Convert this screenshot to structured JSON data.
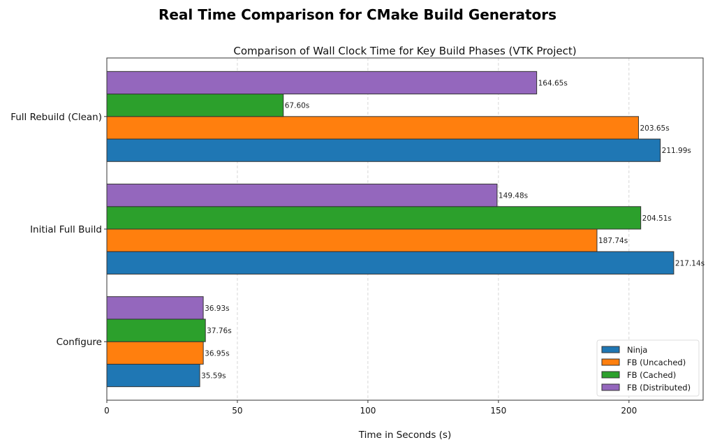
{
  "chart_data": {
    "type": "bar",
    "orientation": "horizontal",
    "suptitle": "Real Time Comparison for CMake Build Generators",
    "title": "Comparison of Wall Clock Time for Key Build Phases (VTK Project)",
    "xlabel": "Time in Seconds (s)",
    "ylabel": "",
    "categories": [
      "Configure",
      "Initial Full Build",
      "Full Rebuild (Clean)"
    ],
    "series": [
      {
        "name": "Ninja",
        "color": "#1f77b4",
        "values": [
          35.59,
          217.14,
          211.99
        ],
        "labels": [
          "35.59s",
          "217.14s",
          "211.99s"
        ]
      },
      {
        "name": "FB (Uncached)",
        "color": "#ff7f0e",
        "values": [
          36.95,
          187.74,
          203.65
        ],
        "labels": [
          "36.95s",
          "187.74s",
          "203.65s"
        ]
      },
      {
        "name": "FB (Cached)",
        "color": "#2ca02c",
        "values": [
          37.76,
          204.51,
          67.6
        ],
        "labels": [
          "37.76s",
          "204.51s",
          "67.60s"
        ]
      },
      {
        "name": "FB (Distributed)",
        "color": "#9467bd",
        "values": [
          36.93,
          149.48,
          164.65
        ],
        "labels": [
          "36.93s",
          "149.48s",
          "164.65s"
        ]
      }
    ],
    "xlim": [
      0,
      228.4
    ],
    "xticks": [
      0,
      50,
      100,
      150,
      200
    ],
    "xtick_labels": [
      "0",
      "50",
      "100",
      "150",
      "200"
    ],
    "grid": "x-dashed",
    "legend": "bottom-right"
  }
}
